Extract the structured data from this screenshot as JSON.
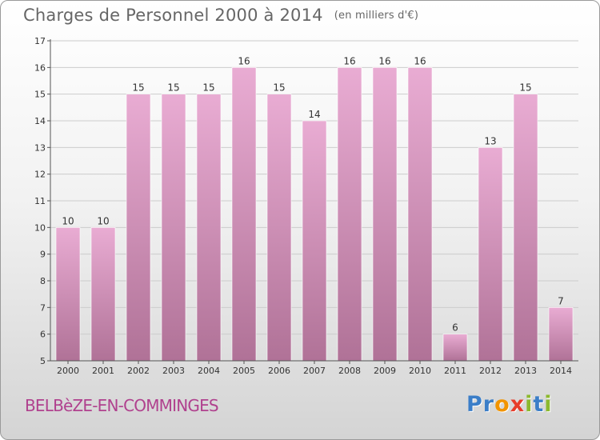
{
  "title": "Charges de Personnel 2000 à 2014",
  "title_unit": "(en milliers d'€)",
  "place": "BELBèZE-EN-COMMINGES",
  "logo": {
    "text": "Proxiti",
    "letter_colors": [
      "#3b7ec8",
      "#3b7ec8",
      "#f29400",
      "#e73c2a",
      "#8cb92e",
      "#3b7ec8",
      "#8cb92e"
    ]
  },
  "colors": {
    "bar_top": "#e9acd3",
    "bar_bottom": "#b07297",
    "axis": "#555555",
    "grid": "#cccccc",
    "label": "#333333"
  },
  "chart_data": {
    "type": "bar",
    "categories": [
      "2000",
      "2001",
      "2002",
      "2003",
      "2004",
      "2005",
      "2006",
      "2007",
      "2008",
      "2009",
      "2010",
      "2011",
      "2012",
      "2013",
      "2014"
    ],
    "values": [
      10,
      10,
      15,
      15,
      15,
      16,
      15,
      14,
      16,
      16,
      16,
      6,
      13,
      15,
      7
    ],
    "ylim": [
      5,
      17
    ],
    "yticks": [
      5,
      6,
      7,
      8,
      9,
      10,
      11,
      12,
      13,
      14,
      15,
      16,
      17
    ],
    "grid": true,
    "data_labels": true
  }
}
